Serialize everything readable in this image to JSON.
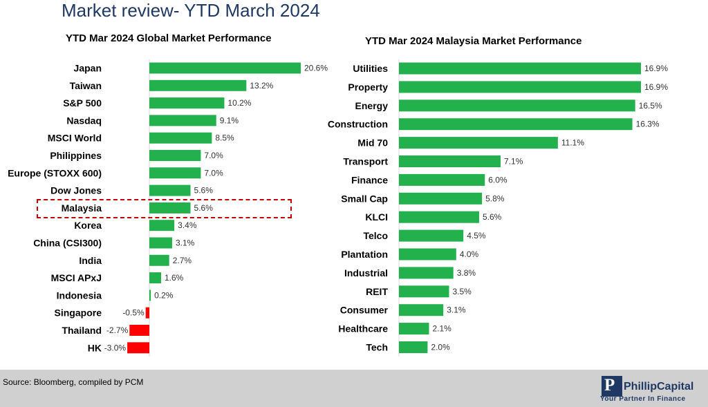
{
  "page": {
    "title": "Market review- YTD March 2024",
    "source": "Source: Bloomberg, compiled by PCM",
    "logo": {
      "name": "PhillipCapital",
      "tagline": "Your Partner In Finance",
      "mark": "P"
    }
  },
  "colors": {
    "positive": "#22b14c",
    "negative": "#ff0000",
    "title": "#1f3864",
    "highlight": "#c00000"
  },
  "chart_data": [
    {
      "type": "bar",
      "orientation": "horizontal",
      "title": "YTD Mar 2024 Global Market Performance",
      "categories": [
        "Japan",
        "Taiwan",
        "S&P 500",
        "Nasdaq",
        "MSCI World",
        "Philippines",
        "Europe (STOXX 600)",
        "Dow Jones",
        "Malaysia",
        "Korea",
        "China (CSI300)",
        "India",
        "MSCI APxJ",
        "Indonesia",
        "Singapore",
        "Thailand",
        "HK"
      ],
      "values": [
        20.6,
        13.2,
        10.2,
        9.1,
        8.5,
        7.0,
        7.0,
        5.6,
        5.6,
        3.4,
        3.1,
        2.7,
        1.6,
        0.2,
        -0.5,
        -2.7,
        -3.0
      ],
      "labels": [
        "20.6%",
        "13.2%",
        "10.2%",
        "9.1%",
        "8.5%",
        "7.0%",
        "7.0%",
        "5.6%",
        "5.6%",
        "3.4%",
        "3.1%",
        "2.7%",
        "1.6%",
        "0.2%",
        "-0.5%",
        "-2.7%",
        "-3.0%"
      ],
      "highlighted_category": "Malaysia",
      "unit": "%"
    },
    {
      "type": "bar",
      "orientation": "horizontal",
      "title": "YTD Mar 2024 Malaysia Market Performance",
      "categories": [
        "Utilities",
        "Property",
        "Energy",
        "Construction",
        "Mid 70",
        "Transport",
        "Finance",
        "Small Cap",
        "KLCI",
        "Telco",
        "Plantation",
        "Industrial",
        "REIT",
        "Consumer",
        "Healthcare",
        "Tech"
      ],
      "values": [
        16.9,
        16.9,
        16.5,
        16.3,
        11.1,
        7.1,
        6.0,
        5.8,
        5.6,
        4.5,
        4.0,
        3.8,
        3.5,
        3.1,
        2.1,
        2.0
      ],
      "labels": [
        "16.9%",
        "16.9%",
        "16.5%",
        "16.3%",
        "11.1%",
        "7.1%",
        "6.0%",
        "5.8%",
        "5.6%",
        "4.5%",
        "4.0%",
        "3.8%",
        "3.5%",
        "3.1%",
        "2.1%",
        "2.0%"
      ],
      "unit": "%"
    }
  ]
}
